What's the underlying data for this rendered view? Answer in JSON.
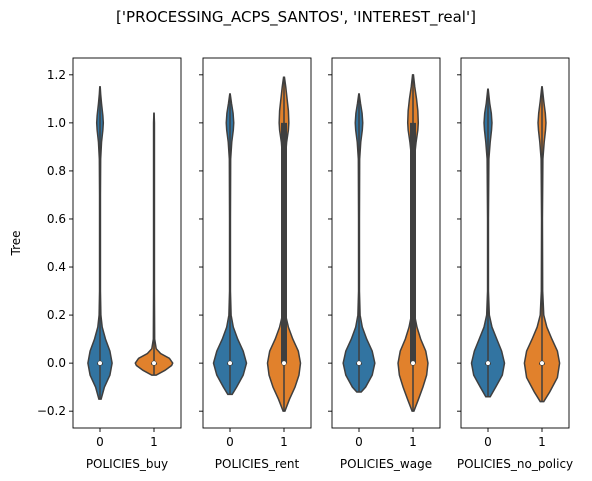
{
  "chart_data": {
    "type": "violin",
    "suptitle": "['PROCESSING_ACPS_SANTOS', 'INTEREST_real']",
    "ylabel": "Tree",
    "ylim": [
      -0.27,
      1.27
    ],
    "yticks": [
      -0.2,
      0.0,
      0.2,
      0.4,
      0.6,
      0.8,
      1.0,
      1.2
    ],
    "ytick_labels": [
      "−0.2",
      "0.0",
      "0.2",
      "0.4",
      "0.6",
      "0.8",
      "1.0",
      "1.2"
    ],
    "colors": {
      "0": "#3274a1",
      "1": "#e1812c"
    },
    "panels": [
      {
        "xlabel": "POLICIES_buy",
        "categories": [
          "0",
          "1"
        ],
        "violins": [
          {
            "category": "0",
            "min": -0.15,
            "max": 1.15,
            "median": 0.0,
            "q1": 0.0,
            "q3": 0.0,
            "density": [
              [
                -0.15,
                0.05
              ],
              [
                -0.1,
                0.2
              ],
              [
                -0.05,
                0.45
              ],
              [
                0.0,
                0.55
              ],
              [
                0.05,
                0.45
              ],
              [
                0.1,
                0.25
              ],
              [
                0.15,
                0.1
              ],
              [
                0.2,
                0.04
              ],
              [
                0.3,
                0.02
              ],
              [
                0.5,
                0.02
              ],
              [
                0.7,
                0.02
              ],
              [
                0.85,
                0.03
              ],
              [
                0.92,
                0.07
              ],
              [
                0.97,
                0.13
              ],
              [
                1.0,
                0.15
              ],
              [
                1.03,
                0.13
              ],
              [
                1.08,
                0.07
              ],
              [
                1.12,
                0.03
              ],
              [
                1.15,
                0.01
              ]
            ]
          },
          {
            "category": "1",
            "min": -0.05,
            "max": 1.04,
            "median": 0.0,
            "q1": 0.0,
            "q3": 0.0,
            "density": [
              [
                -0.05,
                0.1
              ],
              [
                -0.03,
                0.5
              ],
              [
                -0.01,
                0.8
              ],
              [
                0.0,
                0.85
              ],
              [
                0.02,
                0.7
              ],
              [
                0.04,
                0.3
              ],
              [
                0.06,
                0.1
              ],
              [
                0.1,
                0.03
              ],
              [
                0.3,
                0.02
              ],
              [
                0.6,
                0.02
              ],
              [
                0.9,
                0.02
              ],
              [
                1.0,
                0.02
              ],
              [
                1.04,
                0.005
              ]
            ]
          }
        ]
      },
      {
        "xlabel": "POLICIES_rent",
        "categories": [
          "0",
          "1"
        ],
        "violins": [
          {
            "category": "0",
            "min": -0.13,
            "max": 1.12,
            "median": 0.0,
            "q1": 0.0,
            "q3": 0.0,
            "density": [
              [
                -0.13,
                0.1
              ],
              [
                -0.1,
                0.3
              ],
              [
                -0.05,
                0.6
              ],
              [
                0.0,
                0.75
              ],
              [
                0.05,
                0.6
              ],
              [
                0.1,
                0.35
              ],
              [
                0.15,
                0.15
              ],
              [
                0.2,
                0.05
              ],
              [
                0.3,
                0.02
              ],
              [
                0.6,
                0.02
              ],
              [
                0.85,
                0.03
              ],
              [
                0.92,
                0.08
              ],
              [
                0.97,
                0.15
              ],
              [
                1.0,
                0.17
              ],
              [
                1.04,
                0.14
              ],
              [
                1.08,
                0.07
              ],
              [
                1.12,
                0.01
              ]
            ]
          },
          {
            "category": "1",
            "min": -0.2,
            "max": 1.19,
            "median": 0.0,
            "q1": 0.0,
            "q3": 1.0,
            "density": [
              [
                -0.2,
                0.04
              ],
              [
                -0.15,
                0.25
              ],
              [
                -0.1,
                0.5
              ],
              [
                -0.05,
                0.68
              ],
              [
                0.0,
                0.75
              ],
              [
                0.05,
                0.65
              ],
              [
                0.1,
                0.4
              ],
              [
                0.15,
                0.2
              ],
              [
                0.2,
                0.07
              ],
              [
                0.3,
                0.04
              ],
              [
                0.6,
                0.04
              ],
              [
                0.85,
                0.06
              ],
              [
                0.92,
                0.12
              ],
              [
                0.97,
                0.2
              ],
              [
                1.0,
                0.22
              ],
              [
                1.05,
                0.2
              ],
              [
                1.1,
                0.14
              ],
              [
                1.15,
                0.08
              ],
              [
                1.19,
                0.02
              ]
            ]
          }
        ]
      },
      {
        "xlabel": "POLICIES_wage",
        "categories": [
          "0",
          "1"
        ],
        "violins": [
          {
            "category": "0",
            "min": -0.12,
            "max": 1.12,
            "median": 0.0,
            "q1": 0.0,
            "q3": 0.0,
            "density": [
              [
                -0.12,
                0.1
              ],
              [
                -0.1,
                0.3
              ],
              [
                -0.05,
                0.6
              ],
              [
                0.0,
                0.72
              ],
              [
                0.05,
                0.6
              ],
              [
                0.1,
                0.35
              ],
              [
                0.15,
                0.15
              ],
              [
                0.2,
                0.05
              ],
              [
                0.3,
                0.02
              ],
              [
                0.6,
                0.02
              ],
              [
                0.85,
                0.03
              ],
              [
                0.92,
                0.08
              ],
              [
                0.97,
                0.15
              ],
              [
                1.0,
                0.17
              ],
              [
                1.04,
                0.14
              ],
              [
                1.08,
                0.07
              ],
              [
                1.12,
                0.01
              ]
            ]
          },
          {
            "category": "1",
            "min": -0.2,
            "max": 1.2,
            "median": 0.0,
            "q1": 0.0,
            "q3": 1.0,
            "density": [
              [
                -0.2,
                0.04
              ],
              [
                -0.15,
                0.25
              ],
              [
                -0.1,
                0.45
              ],
              [
                -0.05,
                0.62
              ],
              [
                0.0,
                0.68
              ],
              [
                0.05,
                0.58
              ],
              [
                0.1,
                0.35
              ],
              [
                0.15,
                0.18
              ],
              [
                0.2,
                0.07
              ],
              [
                0.3,
                0.04
              ],
              [
                0.6,
                0.04
              ],
              [
                0.85,
                0.06
              ],
              [
                0.92,
                0.14
              ],
              [
                0.97,
                0.22
              ],
              [
                1.0,
                0.24
              ],
              [
                1.05,
                0.22
              ],
              [
                1.1,
                0.16
              ],
              [
                1.15,
                0.08
              ],
              [
                1.2,
                0.02
              ]
            ]
          }
        ]
      },
      {
        "xlabel": "POLICIES_no_policy",
        "categories": [
          "0",
          "1"
        ],
        "violins": [
          {
            "category": "0",
            "min": -0.14,
            "max": 1.14,
            "median": 0.0,
            "q1": 0.0,
            "q3": 0.0,
            "density": [
              [
                -0.14,
                0.1
              ],
              [
                -0.1,
                0.35
              ],
              [
                -0.05,
                0.65
              ],
              [
                0.0,
                0.75
              ],
              [
                0.05,
                0.62
              ],
              [
                0.1,
                0.4
              ],
              [
                0.15,
                0.18
              ],
              [
                0.2,
                0.06
              ],
              [
                0.3,
                0.02
              ],
              [
                0.6,
                0.02
              ],
              [
                0.85,
                0.04
              ],
              [
                0.92,
                0.1
              ],
              [
                0.97,
                0.16
              ],
              [
                1.0,
                0.18
              ],
              [
                1.04,
                0.15
              ],
              [
                1.08,
                0.08
              ],
              [
                1.14,
                0.01
              ]
            ]
          },
          {
            "category": "1",
            "min": -0.16,
            "max": 1.15,
            "median": 0.0,
            "q1": 0.0,
            "q3": 0.0,
            "density": [
              [
                -0.16,
                0.08
              ],
              [
                -0.12,
                0.35
              ],
              [
                -0.06,
                0.7
              ],
              [
                0.0,
                0.8
              ],
              [
                0.05,
                0.7
              ],
              [
                0.1,
                0.45
              ],
              [
                0.15,
                0.22
              ],
              [
                0.2,
                0.08
              ],
              [
                0.3,
                0.03
              ],
              [
                0.6,
                0.02
              ],
              [
                0.85,
                0.04
              ],
              [
                0.92,
                0.1
              ],
              [
                0.97,
                0.16
              ],
              [
                1.0,
                0.18
              ],
              [
                1.04,
                0.15
              ],
              [
                1.09,
                0.08
              ],
              [
                1.15,
                0.01
              ]
            ]
          }
        ]
      }
    ]
  }
}
